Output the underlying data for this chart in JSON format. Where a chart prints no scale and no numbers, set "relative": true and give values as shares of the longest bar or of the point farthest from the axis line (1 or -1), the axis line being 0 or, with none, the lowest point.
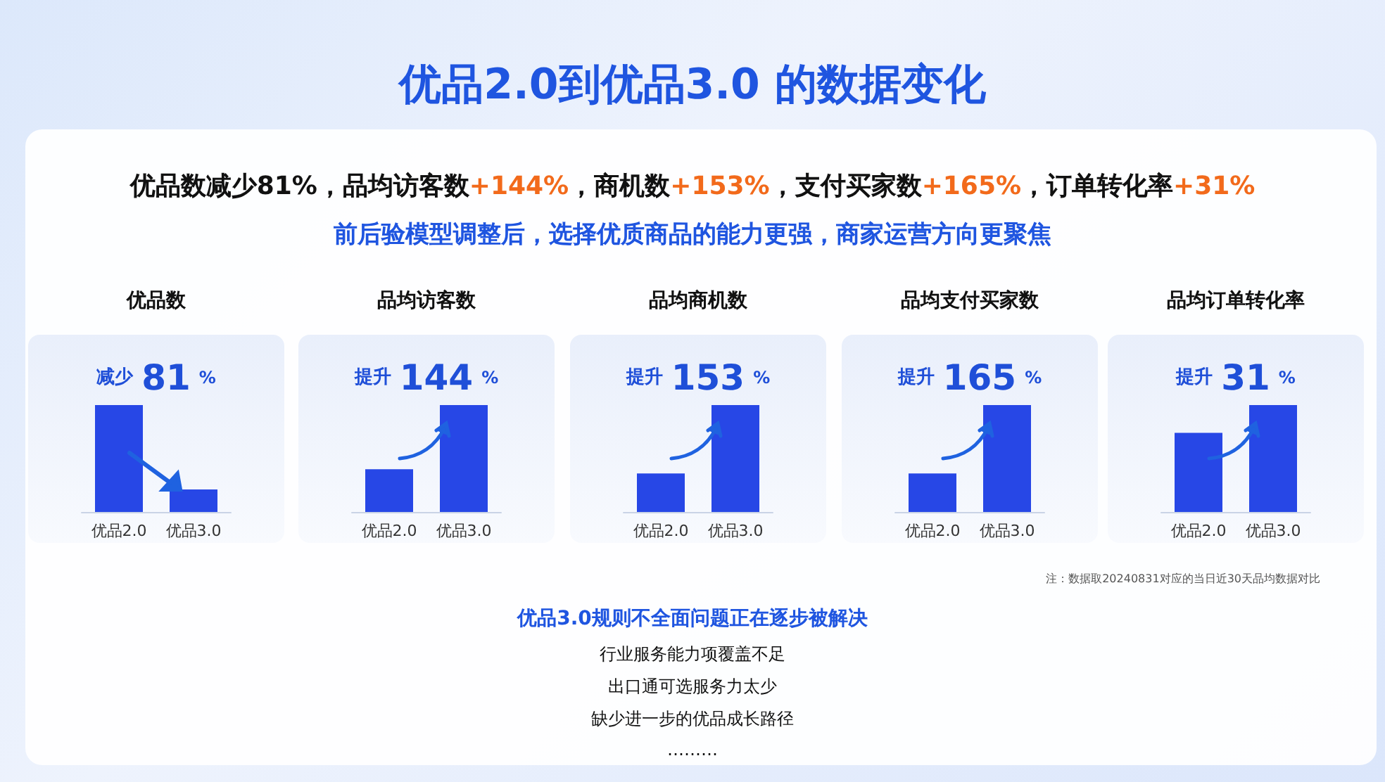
{
  "chart_data": [
    {
      "type": "other",
      "title": "优品2.0到优品3.0 的数据变化",
      "subtitle": "前后验模型调整后，选择优质商品的能力更强，商家运营方向更聚焦",
      "annotations": [
        "优品数减少81%，品均访客数+144%，商机数+153%，支付买家数+165%，订单转化率+31%"
      ]
    },
    {
      "type": "bar",
      "title": "优品数",
      "categories": [
        "优品2.0",
        "优品3.0"
      ],
      "values": [
        1,
        0.21
      ],
      "color": "#2747e6",
      "relative": true,
      "annotations": [
        "减少 81 %"
      ]
    },
    {
      "type": "bar",
      "title": "品均访客数",
      "categories": [
        "优品2.0",
        "优品3.0"
      ],
      "values": [
        0.4,
        1
      ],
      "color": "#2747e6",
      "relative": true,
      "annotations": [
        "提升 144 %"
      ]
    },
    {
      "type": "bar",
      "title": "品均商机数",
      "categories": [
        "优品2.0",
        "优品3.0"
      ],
      "values": [
        0.36,
        1
      ],
      "color": "#2747e6",
      "relative": true,
      "annotations": [
        "提升 153 %"
      ]
    },
    {
      "type": "bar",
      "title": "品均支付买家数",
      "categories": [
        "优品2.0",
        "优品3.0"
      ],
      "values": [
        0.36,
        1
      ],
      "color": "#2747e6",
      "relative": true,
      "annotations": [
        "提升 165 %"
      ]
    },
    {
      "type": "bar",
      "title": "品均订单转化率",
      "categories": [
        "优品2.0",
        "优品3.0"
      ],
      "values": [
        0.74,
        1
      ],
      "color": "#2747e6",
      "relative": true,
      "annotations": [
        "提升 31 %"
      ]
    },
    {
      "type": "other",
      "title": "优品3.0规则不全面问题正在逐步被解决",
      "annotations": [
        "注：数据取20240831对应的当日近30天品均数据对比",
        "行业服务能力项覆盖不足",
        "出口通可选服务力太少",
        "缺少进一步的优品成长路径",
        "………"
      ]
    }
  ]
}
